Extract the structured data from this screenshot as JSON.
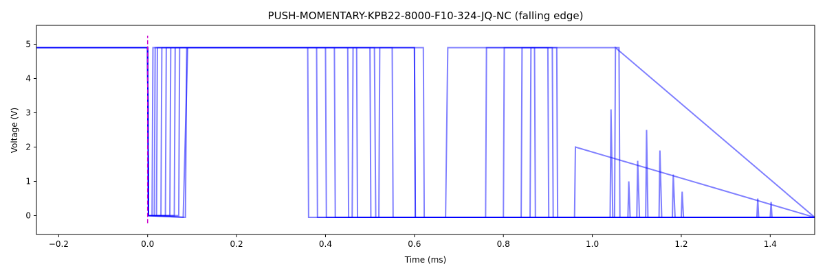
{
  "chart_data": {
    "type": "line",
    "title": "PUSH-MOMENTARY-KPB22-8000-F10-324-JQ-NC (falling edge)",
    "x_label": "Time (ms)",
    "y_label": "Voltage (V)",
    "xlim": [
      -0.25,
      1.5
    ],
    "ylim": [
      -0.55,
      5.55
    ],
    "xticks": [
      {
        "value": -0.2,
        "label": "−0.2"
      },
      {
        "value": 0,
        "label": "0.0"
      },
      0.2,
      0.4,
      0.6,
      0.8,
      {
        "value": 1,
        "label": "1.0"
      },
      1.2,
      1.4
    ],
    "yticks": [
      0,
      1,
      2,
      3,
      4,
      5
    ],
    "opacity": 0.2,
    "series": [
      {
        "color": "#0000ff",
        "x": [
          -0.25,
          0,
          0.002,
          0.01,
          0.012,
          0.36,
          0.362,
          1.5
        ],
        "values": [
          4.9,
          4.9,
          0,
          0,
          4.9,
          4.9,
          -0.05,
          -0.05
        ]
      },
      {
        "color": "#0000ff",
        "x": [
          -0.25,
          0,
          0.002,
          0.02,
          0.022,
          0.4,
          0.402,
          1.5
        ],
        "values": [
          4.9,
          4.9,
          0,
          0,
          4.9,
          4.9,
          -0.05,
          -0.05
        ]
      },
      {
        "color": "#0000ff",
        "x": [
          -0.25,
          0,
          0.002,
          0.05,
          0.052,
          0.45,
          0.452,
          0.46,
          0.462,
          0.6,
          0.602,
          1.5
        ],
        "values": [
          4.9,
          4.9,
          0,
          0,
          4.9,
          4.9,
          -0.05,
          -0.05,
          4.9,
          4.9,
          -0.05,
          -0.05
        ]
      },
      {
        "color": "#0000ff",
        "x": [
          -0.25,
          0,
          0.002,
          0.08,
          0.09,
          0.5,
          0.502,
          0.52,
          0.522,
          0.62,
          0.622,
          0.67,
          0.675,
          1.06,
          1.062,
          1.5
        ],
        "values": [
          4.9,
          4.9,
          0,
          -0.05,
          4.9,
          4.9,
          -0.05,
          -0.05,
          4.9,
          4.9,
          -0.05,
          -0.05,
          4.9,
          4.9,
          -0.05,
          -0.05
        ]
      },
      {
        "color": "#0000ff",
        "x": [
          -0.25,
          0,
          0.002,
          0.07,
          0.072,
          0.38,
          0.382,
          0.76,
          0.762,
          0.92,
          0.922,
          1.5
        ],
        "values": [
          4.9,
          4.9,
          0,
          0,
          4.9,
          4.9,
          -0.05,
          -0.05,
          4.9,
          4.9,
          -0.05,
          -0.05
        ]
      },
      {
        "color": "#0000ff",
        "x": [
          -0.25,
          0,
          0.002,
          0.03,
          0.032,
          0.55,
          0.552,
          0.8,
          0.802,
          0.9,
          0.902,
          1.04,
          1.042,
          1.046,
          1.5
        ],
        "values": [
          4.9,
          4.9,
          0,
          0,
          4.9,
          4.9,
          -0.05,
          -0.05,
          4.9,
          4.9,
          -0.05,
          -0.05,
          3.1,
          -0.05,
          -0.05
        ]
      },
      {
        "color": "#0000ff",
        "x": [
          -0.25,
          0,
          0.002,
          0.06,
          0.062,
          0.42,
          0.422,
          1.1,
          1.102,
          1.106,
          1.15,
          1.152,
          1.156,
          1.18,
          1.182,
          1.186,
          1.5
        ],
        "values": [
          4.9,
          4.9,
          0,
          0,
          4.9,
          4.9,
          -0.05,
          -0.05,
          1.6,
          -0.05,
          -0.05,
          1.9,
          -0.05,
          -0.05,
          1.2,
          -0.05,
          -0.05
        ]
      },
      {
        "color": "#0000ff",
        "x": [
          -0.25,
          0,
          0.002,
          0.085,
          0.088,
          0.6,
          0.602,
          0.84,
          0.842,
          0.91,
          0.912,
          0.96,
          0.962,
          1.5
        ],
        "values": [
          4.9,
          4.9,
          0,
          -0.05,
          4.9,
          4.9,
          -0.05,
          -0.05,
          4.9,
          4.9,
          -0.05,
          -0.05,
          2.0,
          -0.05
        ]
      },
      {
        "color": "#0000ff",
        "x": [
          -0.25,
          0,
          0.002,
          0.04,
          0.042,
          0.47,
          0.472,
          0.86,
          0.862,
          0.87,
          0.872,
          1.05,
          1.052,
          1.5
        ],
        "values": [
          4.9,
          4.9,
          0,
          0,
          4.9,
          4.9,
          -0.05,
          -0.05,
          4.9,
          4.9,
          -0.05,
          -0.05,
          4.9,
          -0.05
        ]
      },
      {
        "color": "#0000ff",
        "x": [
          -0.25,
          0,
          0.002,
          0.015,
          0.017,
          0.51,
          0.513,
          1.08,
          1.082,
          1.085,
          1.12,
          1.122,
          1.125,
          1.2,
          1.202,
          1.205,
          1.37,
          1.372,
          1.374,
          1.4,
          1.402,
          1.404,
          1.5
        ],
        "values": [
          4.9,
          4.9,
          0,
          0,
          4.9,
          4.9,
          -0.05,
          -0.05,
          1.0,
          -0.05,
          -0.05,
          2.5,
          -0.05,
          -0.05,
          0.7,
          -0.05,
          -0.05,
          0.5,
          -0.05,
          -0.05,
          0.4,
          -0.05,
          -0.05
        ]
      }
    ],
    "vline": {
      "x": 0,
      "y": [
        -0.22,
        5.25
      ],
      "color": "#cc00cc"
    }
  }
}
